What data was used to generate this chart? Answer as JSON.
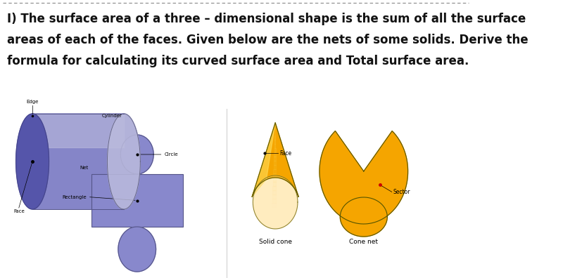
{
  "title_line1": "I) The surface area of a three – dimensional shape is the sum of all the surface",
  "title_line2": "areas of each of the faces. Given below are the nets of some solids. Derive the",
  "title_line3": "formula for calculating its curved surface area and Total surface area.",
  "border_color": "#888888",
  "cylinder_body_color": "#8585C8",
  "cylinder_face_color": "#5555AA",
  "cylinder_top_color": "#BBBBDD",
  "net_color": "#8888CC",
  "cone_orange": "#F5A500",
  "cone_yellow": "#FFE060",
  "cone_light": "#FFF0A0",
  "outline_color": "#555500",
  "sector_color": "#F5A500",
  "oval_color": "#F5A500",
  "bg_color": "#ffffff",
  "text_color": "#111111",
  "label_cylinder": "Cylinder",
  "label_edge": "Edge",
  "label_face": "Face",
  "label_net": "Net",
  "label_rectangle": "Rectangle",
  "label_circle": "Circle",
  "label_solid_cone": "Solid cone",
  "label_cone_net": "Cone net",
  "label_face2": "Face",
  "label_sector": "Sector"
}
